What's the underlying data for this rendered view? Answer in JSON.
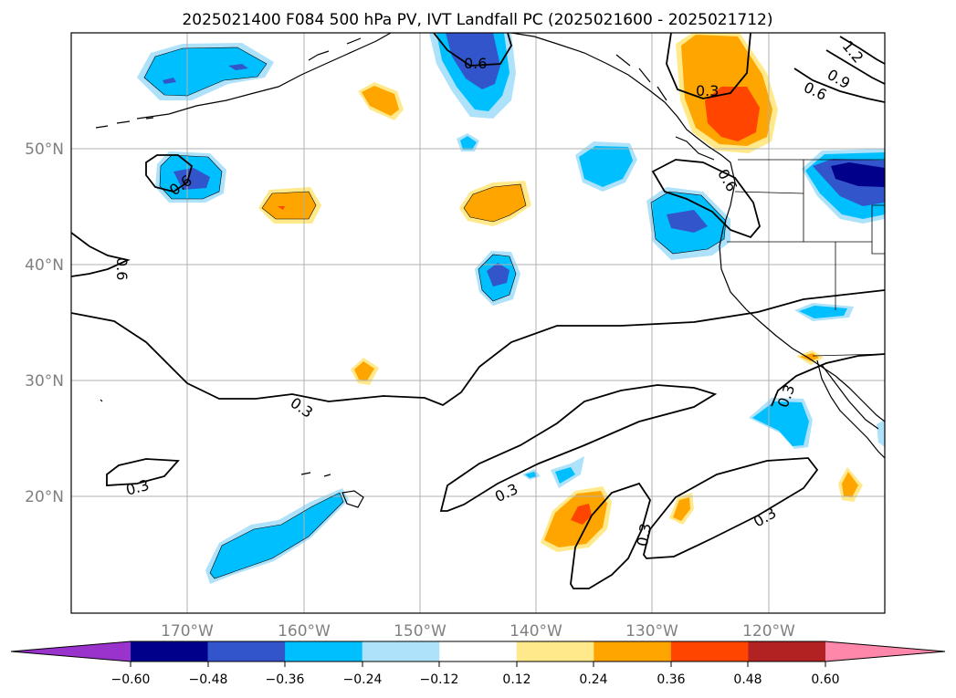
{
  "title": "2025021400 F084 500 hPa PV, IVT Landfall PC (2025021600 - 2025021712)",
  "lat_labels": [
    "50°N",
    "40°N",
    "30°N",
    "20°N"
  ],
  "lon_labels": [
    "170°W",
    "160°W",
    "150°W",
    "140°W",
    "130°W",
    "120°W"
  ],
  "colorbar": {
    "ticks": [
      "−0.60",
      "−0.48",
      "−0.36",
      "−0.24",
      "−0.12",
      "0.12",
      "0.24",
      "0.36",
      "0.48",
      "0.60"
    ],
    "colors": [
      "#9933cc",
      "#00008b",
      "#3355cc",
      "#00bfff",
      "#aee2fa",
      "#ffffff",
      "#ffe98a",
      "#ffa500",
      "#ff4500",
      "#b22222",
      "#ff88aa"
    ]
  },
  "contour_labels": [
    "0.6",
    "0.3",
    "0.9",
    "1.2"
  ],
  "colors": {
    "coast": "#000000",
    "grid": "#b0b0b0",
    "tick_label": "#808080"
  }
}
